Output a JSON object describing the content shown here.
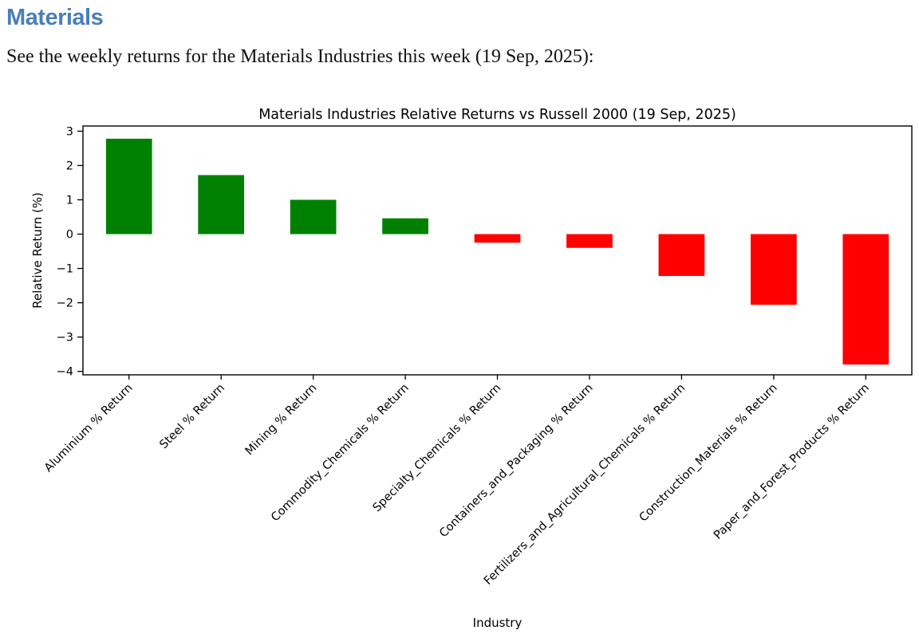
{
  "page": {
    "heading": "Materials",
    "heading_color": "#4A7EBB",
    "intro": "See the weekly returns for the Materials Industries this week (19 Sep, 2025):"
  },
  "chart_data": {
    "type": "bar",
    "title": "Materials Industries Relative Returns vs Russell 2000 (19 Sep, 2025)",
    "xlabel": "Industry",
    "ylabel": "Relative Return (%)",
    "categories": [
      "Aluminium % Return",
      "Steel % Return",
      "Mining % Return",
      "Commodity_Chemicals % Return",
      "Specialty_Chemicals % Return",
      "Containers_and_Packaging % Return",
      "Fertilizers_and_Agricultural_Chemicals % Return",
      "Construction_Materials % Return",
      "Paper_and_Forest_Products % Return"
    ],
    "values": [
      2.78,
      1.72,
      1.0,
      0.46,
      -0.25,
      -0.4,
      -1.22,
      -2.06,
      -3.8
    ],
    "yticks": [
      3,
      2,
      1,
      0,
      -1,
      -2,
      -3,
      -4
    ],
    "ylim": [
      -4.1,
      3.15
    ],
    "positive_color": "#008000",
    "negative_color": "#FF0000",
    "axis_color": "#000000",
    "bar_relative_width": 0.5,
    "xtick_rotation_deg": 45,
    "grid": false,
    "legend": "none"
  }
}
